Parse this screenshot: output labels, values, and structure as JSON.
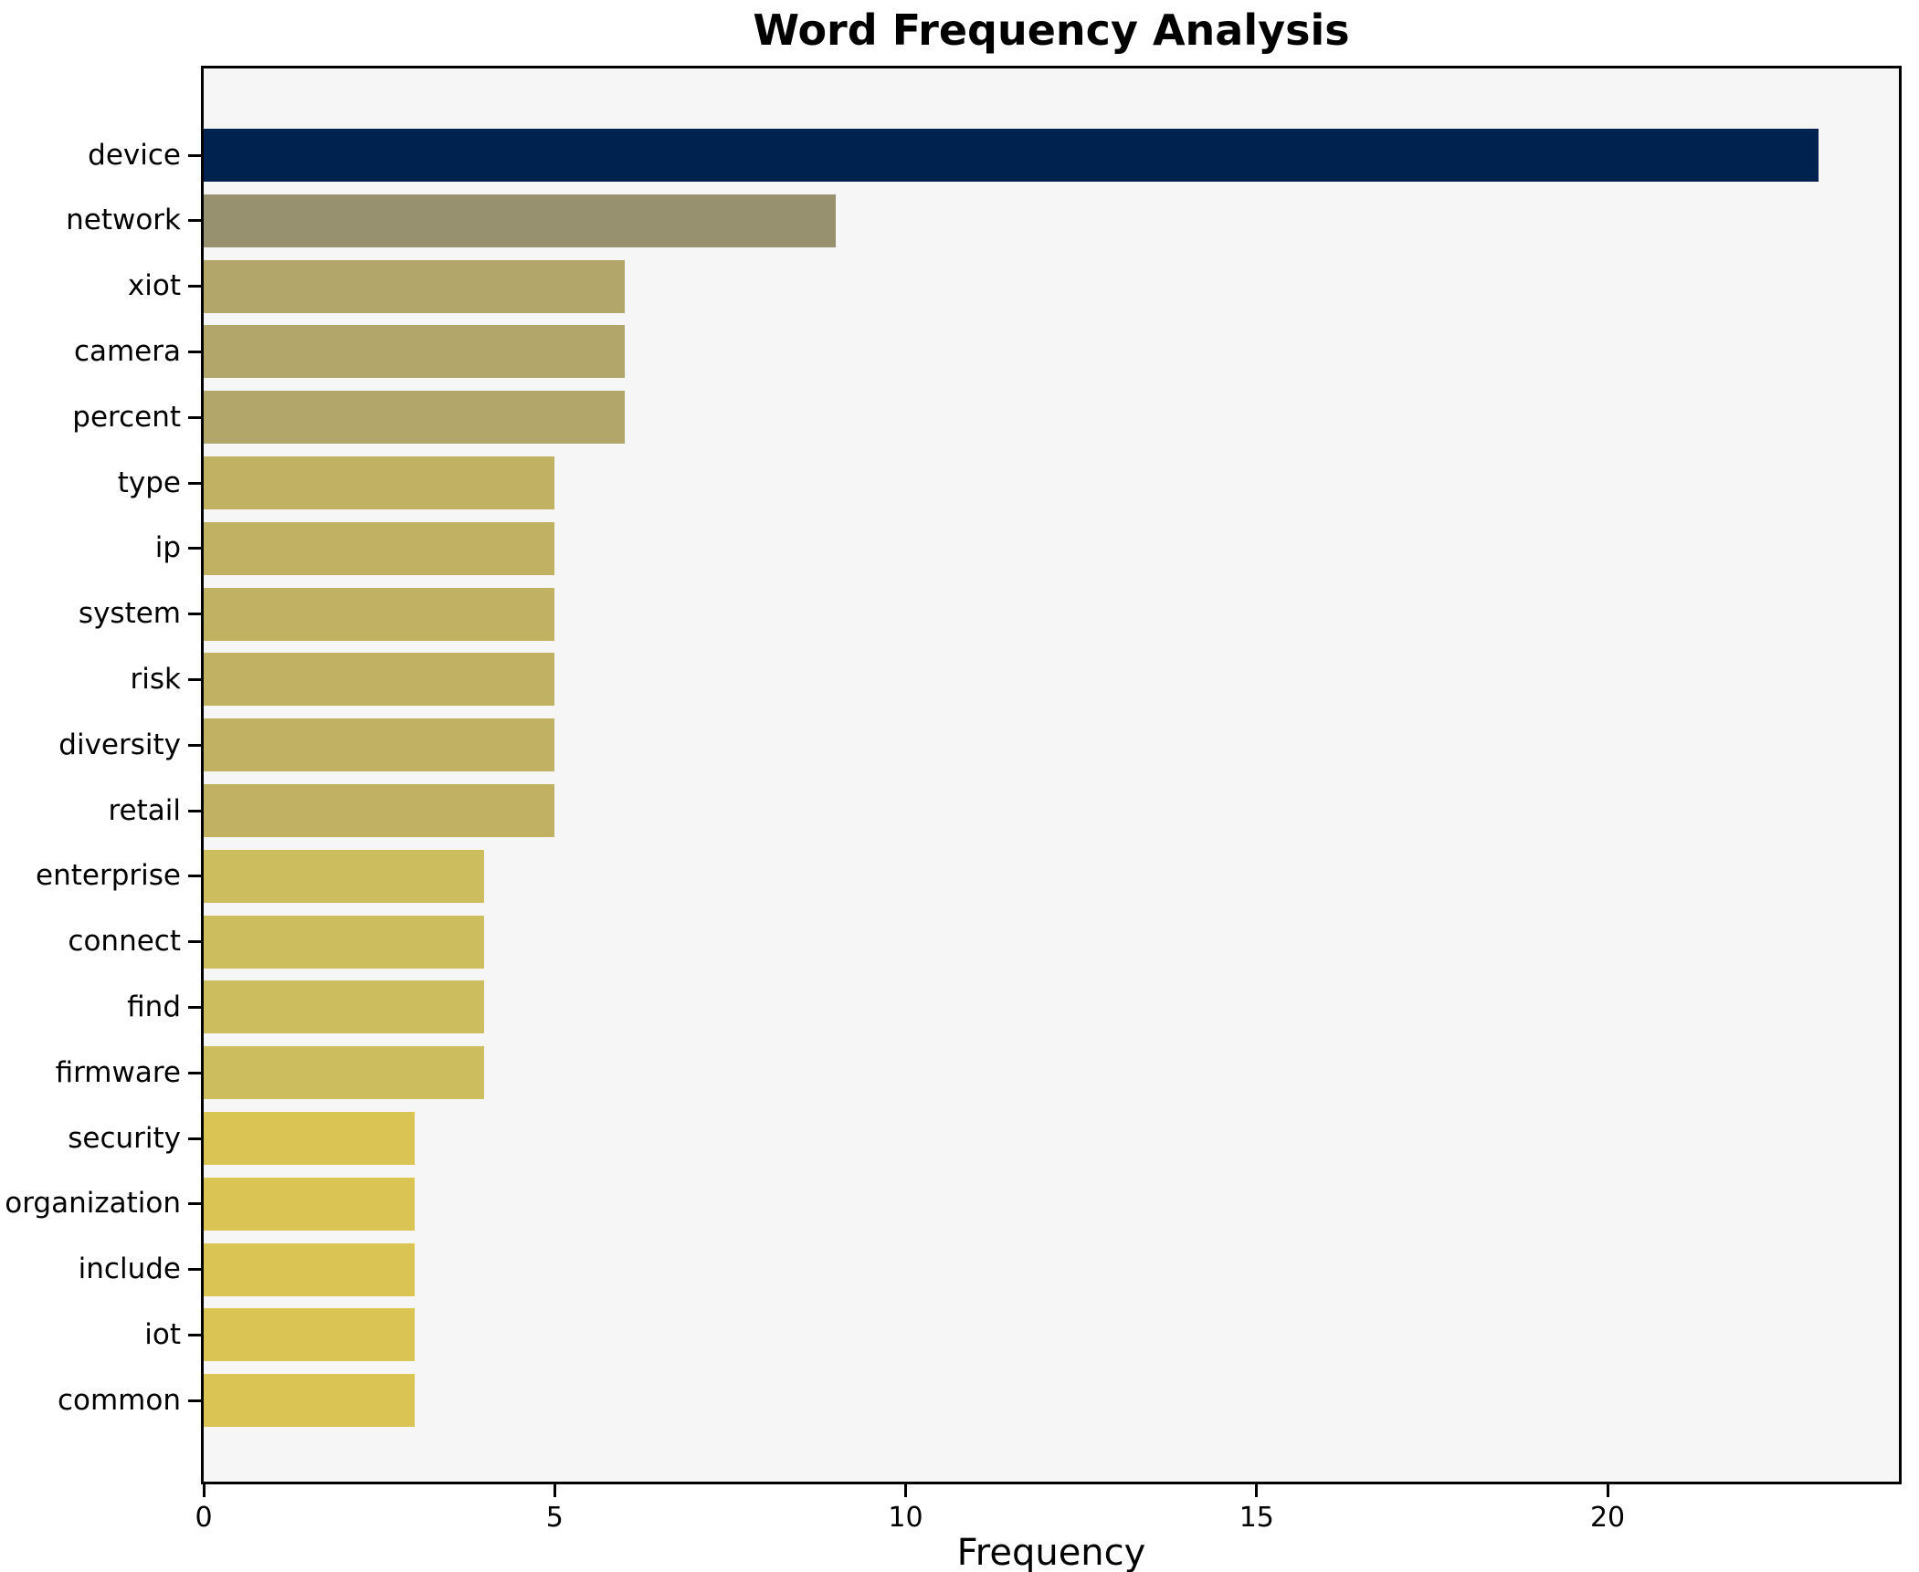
{
  "chart_data": {
    "type": "bar",
    "orientation": "horizontal",
    "title": "Word Frequency Analysis",
    "xlabel": "Frequency",
    "ylabel": "",
    "categories": [
      "device",
      "network",
      "xiot",
      "camera",
      "percent",
      "type",
      "ip",
      "system",
      "risk",
      "diversity",
      "retail",
      "enterprise",
      "connect",
      "find",
      "firmware",
      "security",
      "organization",
      "include",
      "iot",
      "common"
    ],
    "values": [
      23,
      9,
      6,
      6,
      6,
      5,
      5,
      5,
      5,
      5,
      5,
      4,
      4,
      4,
      4,
      3,
      3,
      3,
      3,
      3
    ],
    "bar_colors": [
      "#00224e",
      "#98916f",
      "#b3a66b",
      "#b3a66b",
      "#b3a66b",
      "#c0b163",
      "#c0b163",
      "#c0b163",
      "#c0b163",
      "#c0b163",
      "#c0b163",
      "#ccbd5e",
      "#ccbd5e",
      "#ccbd5e",
      "#ccbd5e",
      "#dac554",
      "#dac554",
      "#dac554",
      "#dac554",
      "#dac554"
    ],
    "xticks": [
      0,
      5,
      10,
      15,
      20
    ],
    "xlim": [
      0,
      24.15
    ],
    "grid": false,
    "legend": null,
    "plot_background": "#f6f6f6",
    "figure_background": "#ffffff",
    "spine_color": "#000000",
    "text_color": "#000000"
  }
}
